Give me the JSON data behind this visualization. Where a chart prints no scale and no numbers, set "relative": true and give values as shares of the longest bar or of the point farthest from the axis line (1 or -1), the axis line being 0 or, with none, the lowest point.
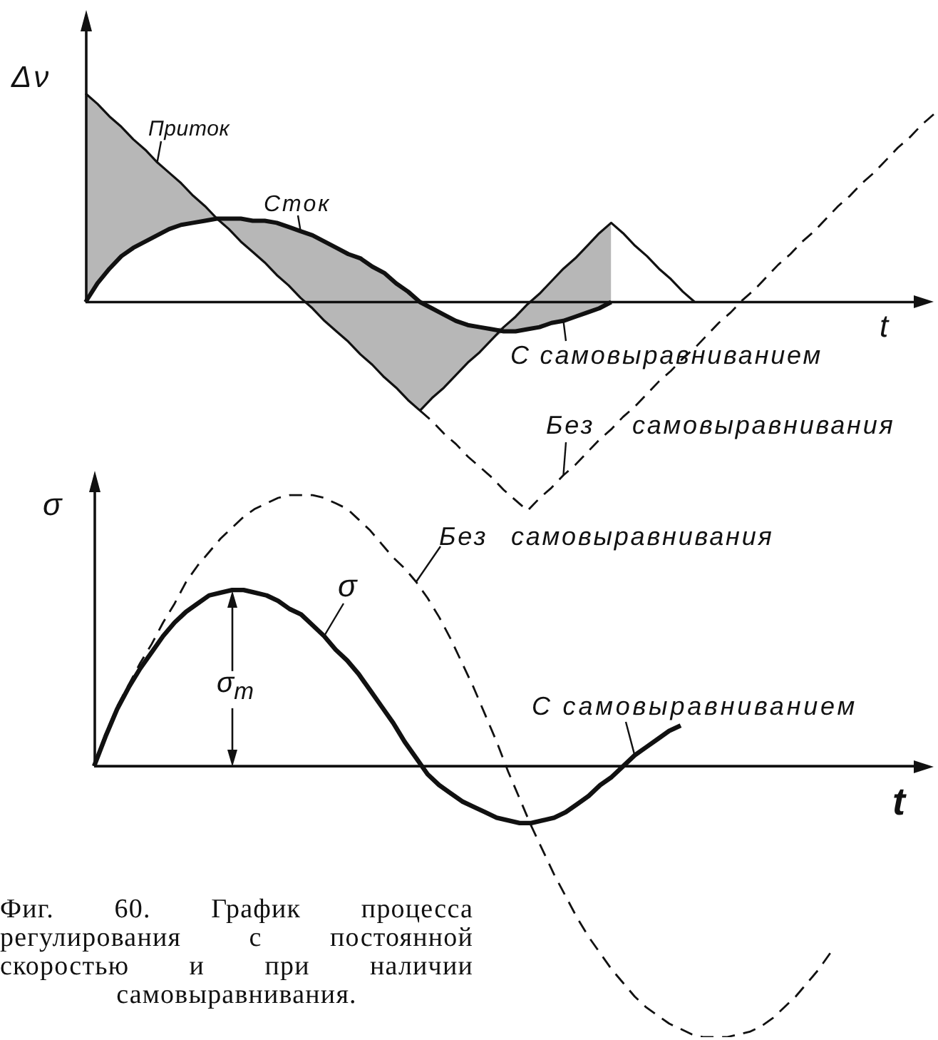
{
  "chart_data": [
    {
      "type": "line",
      "xlabel": "t",
      "ylabel": "Δν",
      "relative": true,
      "marker": "none",
      "categories": [
        null,
        null,
        null,
        null,
        null,
        null,
        null,
        null,
        null,
        null,
        null,
        null,
        null,
        null,
        null,
        null,
        null,
        null,
        null,
        null,
        null,
        null,
        null,
        null,
        null,
        null,
        null,
        null,
        null,
        null,
        null,
        null,
        null,
        null,
        null,
        null,
        null,
        null,
        null,
        null,
        null,
        null,
        null,
        null,
        null,
        null,
        null,
        null,
        null,
        null,
        null,
        null,
        null,
        null,
        null,
        null,
        null,
        null,
        null,
        null,
        null,
        null,
        null,
        null,
        null,
        null,
        null,
        null,
        null,
        null,
        null,
        null
      ],
      "series": [
        {
          "name": "Приток",
          "color": "#111111",
          "values": [
            1,
            0.95,
            0.89,
            0.84,
            0.78,
            0.73,
            0.67,
            0.62,
            0.57,
            0.51,
            0.46,
            0.4,
            0.35,
            0.29,
            0.24,
            0.19,
            0.13,
            0.08,
            0.02,
            -0.03,
            -0.09,
            -0.14,
            -0.19,
            -0.25,
            -0.3,
            -0.36,
            -0.41,
            -0.47,
            -0.52,
            -0.46,
            -0.41,
            -0.35,
            -0.29,
            -0.24,
            -0.18,
            -0.12,
            -0.07,
            -0.01,
            0.04,
            0.1,
            0.16,
            0.21,
            0.27,
            0.33,
            0.38,
            0.33,
            0.27,
            0.22,
            0.16,
            0.11,
            0.05,
            0,
            null,
            null,
            null,
            null,
            null,
            null,
            null,
            null,
            null,
            null,
            null,
            null,
            null,
            null,
            null,
            null,
            null,
            null,
            null,
            null
          ]
        },
        {
          "name": "Сток",
          "color": "#111111",
          "values": [
            0,
            0.09,
            0.16,
            0.22,
            0.26,
            0.29,
            0.32,
            0.35,
            0.37,
            0.38,
            0.39,
            0.4,
            0.4,
            0.4,
            0.39,
            0.39,
            0.38,
            0.36,
            0.34,
            0.32,
            0.29,
            0.26,
            0.23,
            0.21,
            0.17,
            0.14,
            0.09,
            0.05,
            0,
            -0.03,
            -0.06,
            -0.09,
            -0.11,
            -0.12,
            -0.13,
            -0.14,
            -0.14,
            -0.13,
            -0.12,
            -0.1,
            -0.09,
            -0.07,
            -0.05,
            -0.03,
            0,
            null,
            null,
            null,
            null,
            null,
            null,
            null,
            null,
            null,
            null,
            null,
            null,
            null,
            null,
            null,
            null,
            null,
            null,
            null,
            null,
            null,
            null,
            null,
            null,
            null,
            null,
            null
          ],
          "lower": [
            0,
            0.09,
            0.16,
            0.22,
            0.26,
            0.29,
            0.32,
            0.35,
            0.37,
            0.38,
            0.39,
            0.4,
            0.35,
            0.29,
            0.24,
            0.19,
            0.13,
            0.08,
            0.02,
            -0.03,
            -0.09,
            -0.14,
            -0.19,
            -0.25,
            -0.3,
            -0.36,
            -0.41,
            -0.47,
            -0.52,
            -0.46,
            -0.41,
            -0.35,
            -0.29,
            -0.24,
            -0.18,
            -0.14,
            -0.14,
            -0.13,
            -0.12,
            -0.1,
            -0.09,
            -0.07,
            -0.05,
            -0.03,
            0,
            null,
            null,
            null,
            null,
            null,
            null,
            null,
            null,
            null,
            null,
            null,
            null,
            null,
            null,
            null,
            null,
            null,
            null,
            null,
            null,
            null,
            null,
            null,
            null,
            null,
            null,
            null
          ],
          "upper": [
            1,
            0.95,
            0.89,
            0.84,
            0.78,
            0.73,
            0.67,
            0.62,
            0.57,
            0.51,
            0.46,
            0.4,
            0.4,
            0.4,
            0.39,
            0.39,
            0.38,
            0.36,
            0.34,
            0.32,
            0.29,
            0.26,
            0.23,
            0.21,
            0.17,
            0.14,
            0.09,
            0.05,
            0,
            -0.03,
            -0.06,
            -0.09,
            -0.11,
            -0.12,
            -0.13,
            -0.12,
            -0.07,
            -0.01,
            0.04,
            0.1,
            0.16,
            0.21,
            0.27,
            0.33,
            0.38,
            null,
            null,
            null,
            null,
            null,
            null,
            null,
            null,
            null,
            null,
            null,
            null,
            null,
            null,
            null,
            null,
            null,
            null,
            null,
            null,
            null,
            null,
            null,
            null,
            null,
            null,
            null
          ]
        },
        {
          "name": "Без самовыравнивания",
          "color": "#111111",
          "line_style": "dashed",
          "values": [
            null,
            null,
            null,
            null,
            null,
            null,
            null,
            null,
            null,
            null,
            null,
            null,
            null,
            null,
            null,
            null,
            null,
            null,
            null,
            null,
            null,
            null,
            null,
            null,
            null,
            null,
            null,
            null,
            -0.52,
            -0.57,
            -0.63,
            -0.68,
            -0.74,
            -0.79,
            -0.84,
            -0.9,
            -0.95,
            -1,
            -0.94,
            -0.89,
            -0.83,
            -0.78,
            -0.72,
            -0.66,
            -0.61,
            -0.55,
            -0.5,
            -0.44,
            -0.38,
            -0.33,
            -0.27,
            -0.22,
            -0.16,
            -0.1,
            -0.05,
            0.01,
            0.06,
            0.12,
            0.18,
            0.23,
            0.29,
            0.34,
            0.4,
            0.46,
            0.51,
            0.57,
            0.62,
            0.68,
            0.74,
            0.79,
            0.85,
            0.9
          ]
        }
      ],
      "annotations": [
        "С самовыравниванием"
      ]
    },
    {
      "type": "line",
      "xlabel": "t",
      "ylabel": "σ",
      "relative": true,
      "marker": "none",
      "categories": [
        null,
        null,
        null,
        null,
        null,
        null,
        null,
        null,
        null,
        null,
        null,
        null,
        null,
        null,
        null,
        null,
        null,
        null,
        null,
        null,
        null,
        null,
        null,
        null,
        null,
        null,
        null,
        null,
        null,
        null,
        null,
        null,
        null,
        null,
        null,
        null,
        null,
        null,
        null,
        null,
        null,
        null,
        null,
        null,
        null,
        null,
        null,
        null,
        null,
        null,
        null,
        null,
        null,
        null,
        null,
        null,
        null,
        null,
        null,
        null,
        null,
        null,
        null,
        null,
        null,
        null,
        null,
        null,
        null,
        null,
        null,
        null,
        null,
        null
      ],
      "series": [
        {
          "name": "С самовыравниванием",
          "color": "#111111",
          "values": [
            0,
            0.11,
            0.21,
            0.29,
            0.36,
            0.42,
            0.48,
            0.53,
            0.57,
            0.6,
            0.63,
            0.64,
            0.65,
            0.65,
            0.64,
            0.63,
            0.61,
            0.58,
            0.56,
            0.52,
            0.48,
            0.43,
            0.39,
            0.34,
            0.28,
            0.22,
            0.16,
            0.09,
            0.03,
            -0.03,
            -0.07,
            -0.1,
            -0.13,
            -0.15,
            -0.17,
            -0.19,
            -0.2,
            -0.21,
            -0.21,
            -0.2,
            -0.19,
            -0.17,
            -0.14,
            -0.11,
            -0.07,
            -0.04,
            0,
            0.04,
            0.07,
            0.1,
            0.13,
            0.15,
            null,
            null,
            null,
            null,
            null,
            null,
            null,
            null,
            null,
            null,
            null,
            null,
            null,
            null,
            null,
            null,
            null,
            null,
            null,
            null,
            null,
            null
          ]
        },
        {
          "name": "Без самовыравнивания",
          "color": "#111111",
          "line_style": "dashed",
          "values": [
            0,
            0.12,
            0.22,
            0.3,
            0.38,
            0.45,
            0.53,
            0.6,
            0.68,
            0.74,
            0.79,
            0.84,
            0.88,
            0.92,
            0.95,
            0.97,
            0.99,
            1,
            1,
            1,
            0.99,
            0.97,
            0.95,
            0.91,
            0.87,
            0.82,
            0.77,
            0.73,
            0.68,
            0.62,
            0.55,
            0.47,
            0.38,
            0.29,
            0.19,
            0.09,
            -0.02,
            -0.12,
            -0.22,
            -0.31,
            -0.4,
            -0.48,
            -0.56,
            -0.63,
            -0.69,
            -0.75,
            -0.8,
            -0.85,
            -0.89,
            -0.92,
            -0.95,
            -0.97,
            -0.99,
            -1,
            -1,
            -1,
            -0.99,
            -0.98,
            -0.96,
            -0.93,
            -0.89,
            -0.85,
            -0.8,
            -0.75,
            -0.69,
            null,
            null,
            null,
            null,
            null,
            null,
            null,
            null,
            null
          ]
        }
      ],
      "annotations": [
        "σ",
        "σ$_{m}$",
        "Фиг. 60. График процесса регулирования с постоянной скоростью и при наличии самовыравнивания."
      ]
    }
  ]
}
